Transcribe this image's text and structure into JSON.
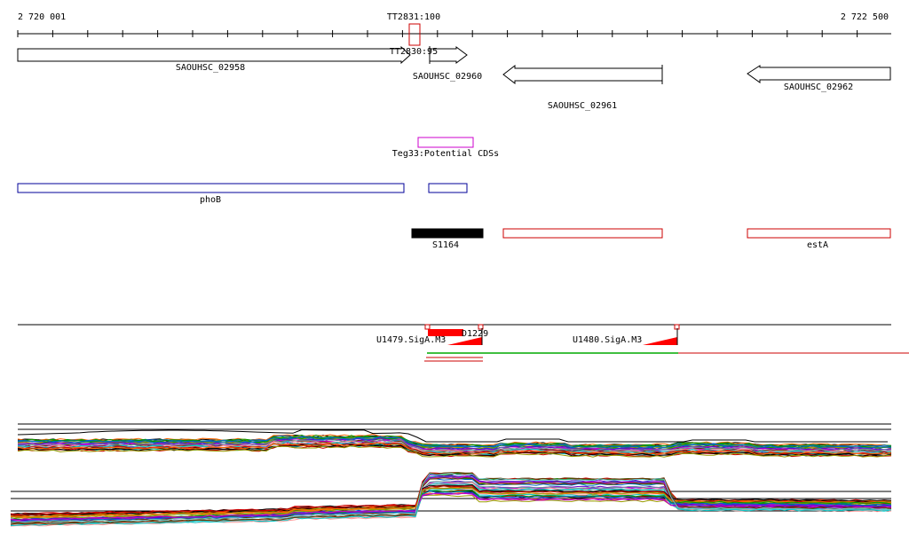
{
  "ruler": {
    "start_label": "2 720 001",
    "end_label": "2 722 500",
    "marker_label": "TT2831:100",
    "start_bp": 2720001,
    "end_bp": 2722500
  },
  "features": {
    "terminators": [
      {
        "label": "TT2830:95"
      }
    ],
    "genes": [
      {
        "label": "SAOUHSC_02958",
        "strand": "+"
      },
      {
        "label": "SAOUHSC_02960",
        "strand": "+"
      },
      {
        "label": "SAOUHSC_02961",
        "strand": "-"
      },
      {
        "label": "SAOUHSC_02962",
        "strand": "-"
      }
    ],
    "potential_cds": {
      "label": "Teg33:Potential CDSs",
      "color": "#cc00cc"
    },
    "operons": [
      {
        "label": "phoB",
        "color": "#000099"
      },
      {
        "label": "",
        "color": "#000099"
      }
    ],
    "segments": [
      {
        "label": "S1164",
        "color": "#000000"
      },
      {
        "label": "",
        "color": "#cc0000"
      },
      {
        "label": "estA",
        "color": "#cc0000"
      }
    ]
  },
  "promoters": {
    "items": [
      {
        "label": "U1479.SigA.M3"
      },
      {
        "label": "D1229"
      },
      {
        "label": "U1480.SigA.M3"
      }
    ],
    "color": "#ff0000"
  },
  "expression": {
    "track_colors": [
      "#000000",
      "#cc0000",
      "#ff6600",
      "#999900",
      "#009900",
      "#0066cc",
      "#6600cc",
      "#cc00cc",
      "#663300",
      "#669999",
      "#ff9999",
      "#00cccc"
    ]
  }
}
